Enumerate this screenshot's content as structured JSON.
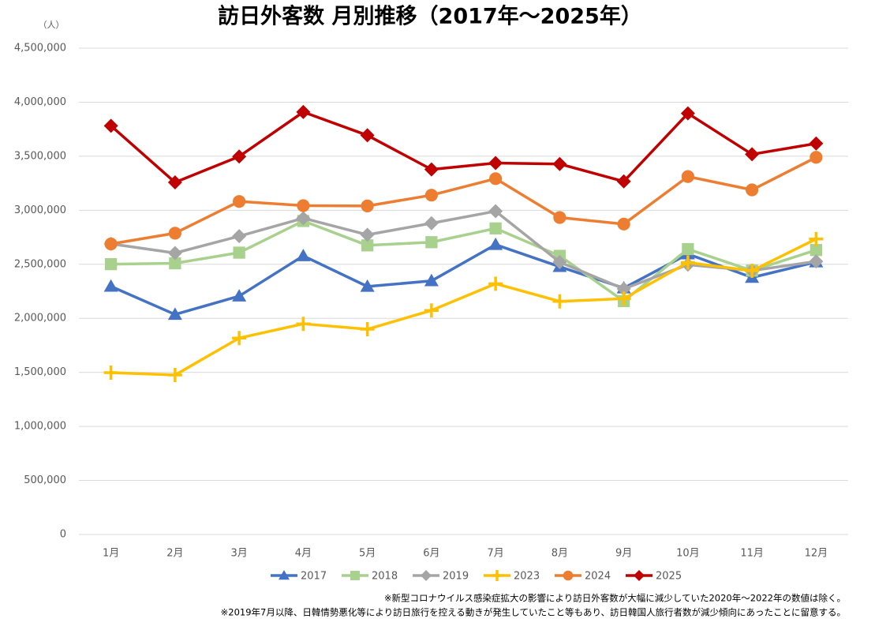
{
  "chart_data": {
    "type": "line",
    "title": "訪日外客数 月別推移（2017年～2025年）",
    "y_unit": "（人）",
    "categories": [
      "1月",
      "2月",
      "3月",
      "4月",
      "5月",
      "6月",
      "7月",
      "8月",
      "9月",
      "10月",
      "11月",
      "12月"
    ],
    "ylim": [
      0,
      4500000
    ],
    "yticks": [
      0,
      {
        "value": 500000,
        "label": "500,000"
      },
      {
        "value": 1000000,
        "label": "1,000,000"
      },
      {
        "value": 1500000,
        "label": "1,500,000"
      },
      {
        "value": 2000000,
        "label": "2,000,000"
      },
      {
        "value": 2500000,
        "label": "2,500,000"
      },
      {
        "value": 3000000,
        "label": "3,000,000"
      },
      {
        "value": 3500000,
        "label": "3,500,000"
      },
      {
        "value": 4000000,
        "label": "4,000,000"
      },
      {
        "value": 4500000,
        "label": "4,500,000"
      }
    ],
    "grid": true,
    "legend": "bottom",
    "series": [
      {
        "name": "2017",
        "color": "#4472c4",
        "marker": "triangle",
        "values": [
          2295700,
          2035800,
          2205700,
          2578000,
          2294700,
          2346400,
          2682100,
          2478000,
          2280000,
          2595000,
          2377900,
          2521400
        ]
      },
      {
        "name": "2018",
        "color": "#a9d18e",
        "marker": "square",
        "values": [
          2501400,
          2509300,
          2607800,
          2900700,
          2675100,
          2704600,
          2832000,
          2578000,
          2159600,
          2640600,
          2441300,
          2632000
        ]
      },
      {
        "name": "2019",
        "color": "#a5a5a5",
        "marker": "diamond",
        "values": [
          2689300,
          2604300,
          2760100,
          2926700,
          2773100,
          2880000,
          2991200,
          2520100,
          2272900,
          2496600,
          2441300,
          2526400
        ]
      },
      {
        "name": "2023",
        "color": "#ffc000",
        "marker": "plus",
        "values": [
          1497300,
          1475300,
          1817500,
          1949100,
          1899200,
          2073300,
          2320600,
          2156900,
          2182300,
          2516500,
          2440100,
          2734000
        ]
      },
      {
        "name": "2024",
        "color": "#ed7d31",
        "marker": "circle",
        "values": [
          2688100,
          2788000,
          3081600,
          3042900,
          3040000,
          3140000,
          3292500,
          2933000,
          2872200,
          3312100,
          3188600,
          3489800
        ]
      },
      {
        "name": "2025",
        "color": "#c00000",
        "marker": "diamond",
        "values": [
          3781600,
          3258100,
          3497600,
          3908900,
          3693300,
          3377800,
          3437000,
          3428000,
          3266800,
          3896300,
          3518000,
          3617700
        ]
      }
    ],
    "notes": [
      "※新型コロナウイルス感染症拡大の影響により訪日外客数が大幅に減少していた2020年～2022年の数値は除く。",
      "※2019年7月以降、日韓情勢悪化等により訪日旅行を控える動きが発生していたこと等もあり、訪日韓国人旅行者数が減少傾向にあったことに留意する。"
    ]
  }
}
